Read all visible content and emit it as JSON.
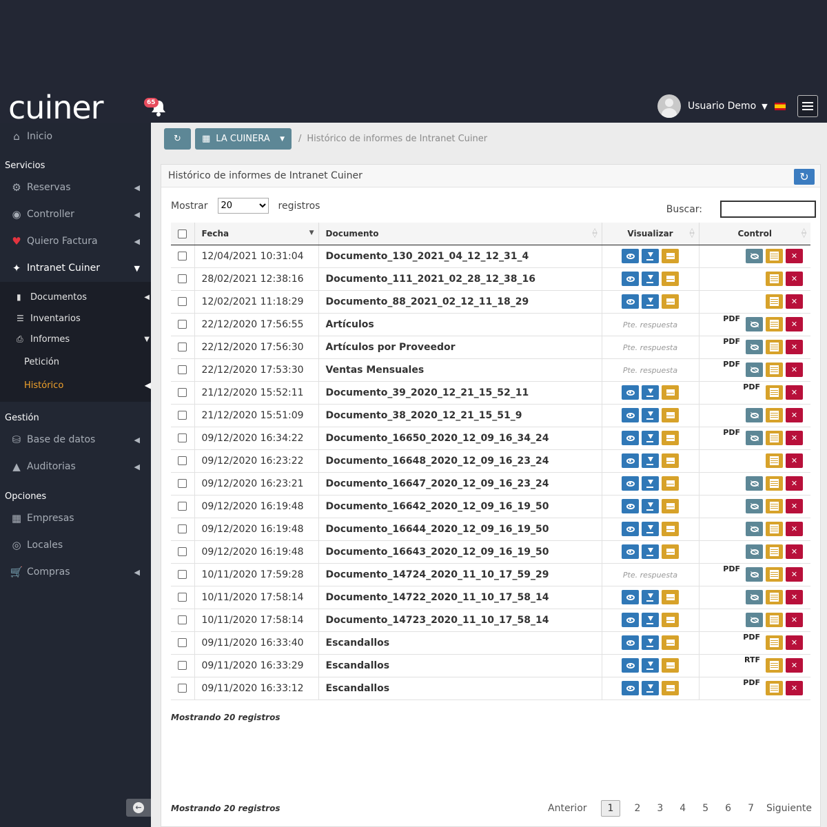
{
  "header": {
    "logo": "cuiner",
    "notifications": "65",
    "user": "Usuario Demo"
  },
  "sidebar": {
    "inicio": "Inicio",
    "servicios": "Servicios",
    "reservas": "Reservas",
    "controller": "Controller",
    "quiero_factura": "Quiero Factura",
    "intranet": "Intranet Cuiner",
    "documentos": "Documentos",
    "inventarios": "Inventarios",
    "informes": "Informes",
    "peticion": "Petición",
    "historico": "Histórico",
    "gestion": "Gestión",
    "base_datos": "Base de datos",
    "auditorias": "Auditorias",
    "opciones": "Opciones",
    "empresas": "Empresas",
    "locales": "Locales",
    "compras": "Compras",
    "active_color": "#f0a12b"
  },
  "toolbar": {
    "company": "LA CUINERA",
    "breadcrumb": "Histórico de informes de Intranet Cuiner"
  },
  "panel": {
    "title": "Histórico de informes de Intranet Cuiner",
    "show_label": "Mostrar",
    "show_value": "20",
    "records_label": "registros",
    "search_label": "Buscar:"
  },
  "table": {
    "headers": {
      "date": "Fecha",
      "document": "Documento",
      "view": "Visualizar",
      "control": "Control"
    },
    "pending_text": "Pte. respuesta",
    "rows": [
      {
        "date": "12/04/2021 10:31:04",
        "doc": "Documento_130_2021_04_12_12_31_4",
        "vis": "buttons",
        "fmt": "",
        "hide": true
      },
      {
        "date": "28/02/2021 12:38:16",
        "doc": "Documento_111_2021_02_28_12_38_16",
        "vis": "buttons",
        "fmt": "",
        "hide": false
      },
      {
        "date": "12/02/2021 11:18:29",
        "doc": "Documento_88_2021_02_12_11_18_29",
        "vis": "buttons",
        "fmt": "",
        "hide": false
      },
      {
        "date": "22/12/2020 17:56:55",
        "doc": "Artículos",
        "vis": "pending",
        "fmt": "PDF",
        "hide": true
      },
      {
        "date": "22/12/2020 17:56:30",
        "doc": "Artículos por Proveedor",
        "vis": "pending",
        "fmt": "PDF",
        "hide": true
      },
      {
        "date": "22/12/2020 17:53:30",
        "doc": "Ventas Mensuales",
        "vis": "pending",
        "fmt": "PDF",
        "hide": true
      },
      {
        "date": "21/12/2020 15:52:11",
        "doc": "Documento_39_2020_12_21_15_52_11",
        "vis": "buttons",
        "fmt": "PDF",
        "hide": false
      },
      {
        "date": "21/12/2020 15:51:09",
        "doc": "Documento_38_2020_12_21_15_51_9",
        "vis": "buttons",
        "fmt": "",
        "hide": true
      },
      {
        "date": "09/12/2020 16:34:22",
        "doc": "Documento_16650_2020_12_09_16_34_24",
        "vis": "buttons",
        "fmt": "PDF",
        "hide": true
      },
      {
        "date": "09/12/2020 16:23:22",
        "doc": "Documento_16648_2020_12_09_16_23_24",
        "vis": "buttons",
        "fmt": "",
        "hide": false
      },
      {
        "date": "09/12/2020 16:23:21",
        "doc": "Documento_16647_2020_12_09_16_23_24",
        "vis": "buttons",
        "fmt": "",
        "hide": true
      },
      {
        "date": "09/12/2020 16:19:48",
        "doc": "Documento_16642_2020_12_09_16_19_50",
        "vis": "buttons",
        "fmt": "",
        "hide": true
      },
      {
        "date": "09/12/2020 16:19:48",
        "doc": "Documento_16644_2020_12_09_16_19_50",
        "vis": "buttons",
        "fmt": "",
        "hide": true
      },
      {
        "date": "09/12/2020 16:19:48",
        "doc": "Documento_16643_2020_12_09_16_19_50",
        "vis": "buttons",
        "fmt": "",
        "hide": true
      },
      {
        "date": "10/11/2020 17:59:28",
        "doc": "Documento_14724_2020_11_10_17_59_29",
        "vis": "pending",
        "fmt": "PDF",
        "hide": true
      },
      {
        "date": "10/11/2020 17:58:14",
        "doc": "Documento_14722_2020_11_10_17_58_14",
        "vis": "buttons",
        "fmt": "",
        "hide": true
      },
      {
        "date": "10/11/2020 17:58:14",
        "doc": "Documento_14723_2020_11_10_17_58_14",
        "vis": "buttons",
        "fmt": "",
        "hide": true
      },
      {
        "date": "09/11/2020 16:33:40",
        "doc": "Escandallos",
        "vis": "buttons",
        "fmt": "PDF",
        "hide": false
      },
      {
        "date": "09/11/2020 16:33:29",
        "doc": "Escandallos",
        "vis": "buttons",
        "fmt": "RTF",
        "hide": false
      },
      {
        "date": "09/11/2020 16:33:12",
        "doc": "Escandallos",
        "vis": "buttons",
        "fmt": "PDF",
        "hide": false
      }
    ]
  },
  "footer": {
    "info_top": "Mostrando 20 registros",
    "info_bottom": "Mostrando 20 registros",
    "prev": "Anterior",
    "next": "Siguiente",
    "pages": [
      "1",
      "2",
      "3",
      "4",
      "5",
      "6",
      "7"
    ],
    "current_page": "1"
  }
}
